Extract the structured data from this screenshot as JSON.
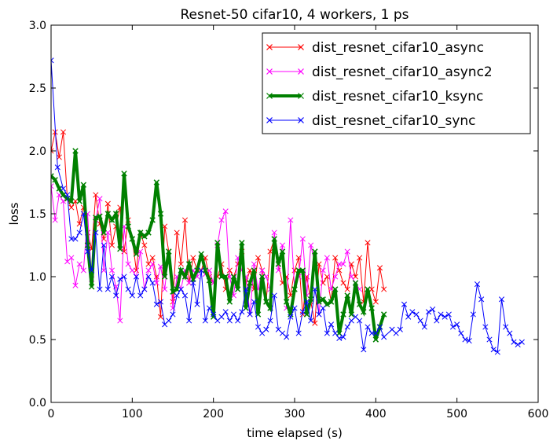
{
  "chart_data": {
    "type": "line",
    "title": "Resnet-50 cifar10, 4 workers, 1 ps",
    "xlabel": "time elapsed (s)",
    "ylabel": "loss",
    "xlim": [
      0,
      600
    ],
    "ylim": [
      0.0,
      3.0
    ],
    "xticks": [
      0,
      100,
      200,
      300,
      400,
      500,
      600
    ],
    "yticks": [
      0.0,
      0.5,
      1.0,
      1.5,
      2.0,
      2.5,
      3.0
    ],
    "xtick_labels": [
      "0",
      "100",
      "200",
      "300",
      "400",
      "500",
      "600"
    ],
    "ytick_labels": [
      "0.0",
      "0.5",
      "1.0",
      "1.5",
      "2.0",
      "2.5",
      "3.0"
    ],
    "grid": false,
    "legend_position": "top-right",
    "series": [
      {
        "name": "dist_resnet_cifar10_async",
        "color": "#ff0000",
        "marker": "x",
        "linewidth": 1,
        "x": [
          0,
          5,
          10,
          15,
          20,
          25,
          30,
          35,
          40,
          45,
          50,
          55,
          60,
          65,
          70,
          75,
          80,
          85,
          90,
          95,
          100,
          105,
          110,
          115,
          120,
          125,
          130,
          135,
          140,
          145,
          150,
          155,
          160,
          165,
          170,
          175,
          180,
          185,
          190,
          195,
          200,
          205,
          210,
          215,
          220,
          225,
          230,
          235,
          240,
          245,
          250,
          255,
          260,
          265,
          270,
          275,
          280,
          285,
          290,
          295,
          300,
          305,
          310,
          315,
          320,
          325,
          330,
          335,
          340,
          345,
          350,
          355,
          360,
          365,
          370,
          375,
          380,
          385,
          390,
          395,
          400,
          405,
          410
        ],
        "y": [
          2.0,
          2.15,
          1.95,
          2.15,
          1.62,
          1.55,
          1.6,
          1.42,
          1.55,
          1.35,
          1.22,
          1.65,
          1.42,
          1.3,
          1.58,
          1.25,
          1.4,
          1.55,
          1.2,
          1.45,
          1.3,
          1.05,
          1.35,
          1.25,
          1.1,
          1.15,
          1.0,
          0.68,
          1.4,
          1.2,
          0.8,
          1.35,
          1.1,
          1.45,
          0.95,
          1.15,
          1.05,
          1.05,
          1.15,
          1.0,
          0.95,
          1.0,
          1.1,
          0.9,
          1.05,
          1.0,
          1.1,
          1.2,
          0.95,
          1.05,
          0.9,
          1.15,
          1.05,
          0.8,
          1.2,
          1.3,
          1.1,
          0.95,
          1.0,
          0.85,
          1.05,
          1.15,
          0.7,
          1.0,
          0.8,
          0.63,
          1.1,
          0.95,
          1.0,
          0.8,
          1.15,
          1.05,
          0.95,
          0.9,
          1.1,
          1.0,
          1.15,
          0.8,
          1.27,
          0.9,
          0.8,
          1.07,
          0.9
        ]
      },
      {
        "name": "dist_resnet_cifar10_async2",
        "color": "#ff00ff",
        "marker": "x",
        "linewidth": 1,
        "x": [
          0,
          5,
          10,
          15,
          20,
          25,
          30,
          35,
          40,
          45,
          50,
          55,
          60,
          65,
          70,
          75,
          80,
          85,
          90,
          95,
          100,
          105,
          110,
          115,
          120,
          125,
          130,
          135,
          140,
          145,
          150,
          155,
          160,
          165,
          170,
          175,
          180,
          185,
          190,
          195,
          200,
          205,
          210,
          215,
          220,
          225,
          230,
          235,
          240,
          245,
          250,
          255,
          260,
          265,
          270,
          275,
          280,
          285,
          290,
          295,
          300,
          305,
          310,
          315,
          320,
          325,
          330,
          335,
          340,
          345,
          350,
          355,
          360,
          365,
          370,
          375,
          380
        ],
        "y": [
          1.72,
          1.45,
          1.65,
          1.6,
          1.12,
          1.15,
          0.93,
          1.1,
          1.05,
          1.5,
          0.98,
          1.45,
          1.62,
          1.05,
          1.35,
          1.05,
          0.92,
          0.65,
          1.4,
          1.1,
          1.05,
          1.0,
          1.2,
          0.9,
          1.05,
          1.1,
          0.95,
          1.08,
          0.9,
          1.2,
          0.75,
          1.0,
          0.9,
          1.05,
          0.95,
          1.05,
          1.0,
          1.18,
          1.02,
          1.05,
          0.95,
          1.25,
          1.45,
          1.52,
          1.0,
          0.85,
          1.15,
          1.05,
          1.0,
          0.7,
          1.1,
          0.9,
          1.05,
          1.0,
          0.9,
          1.35,
          1.05,
          1.25,
          0.75,
          1.45,
          0.9,
          1.0,
          1.3,
          0.85,
          1.25,
          1.1,
          0.7,
          1.05,
          1.15,
          0.9,
          1.0,
          1.1,
          1.1,
          1.2,
          1.0,
          0.95,
          0.9
        ]
      },
      {
        "name": "dist_resnet_cifar10_ksync",
        "color": "#008000",
        "marker": "x",
        "linewidth": 4,
        "x": [
          0,
          5,
          10,
          15,
          20,
          25,
          30,
          35,
          40,
          45,
          50,
          55,
          60,
          65,
          70,
          75,
          80,
          85,
          90,
          95,
          100,
          105,
          110,
          115,
          120,
          125,
          130,
          135,
          140,
          145,
          150,
          155,
          160,
          165,
          170,
          175,
          180,
          185,
          190,
          195,
          200,
          205,
          210,
          215,
          220,
          225,
          230,
          235,
          240,
          245,
          250,
          255,
          260,
          265,
          270,
          275,
          280,
          285,
          290,
          295,
          300,
          305,
          310,
          315,
          320,
          325,
          330,
          335,
          340,
          345,
          350,
          355,
          360,
          365,
          370,
          375,
          380,
          385,
          390,
          395,
          400,
          405,
          410
        ],
        "y": [
          1.8,
          1.77,
          1.7,
          1.65,
          1.62,
          1.6,
          2.0,
          1.6,
          1.73,
          1.25,
          0.92,
          1.47,
          1.48,
          1.35,
          1.5,
          1.45,
          1.5,
          1.22,
          1.82,
          1.4,
          1.3,
          1.18,
          1.35,
          1.32,
          1.35,
          1.45,
          1.75,
          1.5,
          1.0,
          1.2,
          0.88,
          0.9,
          1.05,
          1.0,
          1.1,
          0.98,
          1.05,
          1.18,
          1.05,
          0.97,
          0.68,
          1.27,
          1.0,
          1.0,
          0.8,
          1.0,
          0.9,
          1.27,
          0.75,
          0.95,
          1.05,
          0.7,
          1.0,
          0.8,
          0.75,
          1.3,
          1.1,
          1.2,
          0.8,
          0.7,
          0.9,
          1.05,
          1.05,
          0.7,
          0.82,
          1.2,
          0.8,
          0.82,
          0.78,
          0.8,
          0.9,
          0.55,
          0.7,
          0.85,
          0.7,
          0.95,
          0.78,
          0.72,
          0.9,
          0.75,
          0.5,
          0.6,
          0.7
        ]
      },
      {
        "name": "dist_resnet_cifar10_sync",
        "color": "#0000ff",
        "marker": "x",
        "linewidth": 1,
        "x": [
          0,
          8,
          15,
          20,
          25,
          30,
          35,
          40,
          45,
          50,
          55,
          60,
          65,
          70,
          75,
          80,
          85,
          90,
          95,
          100,
          105,
          110,
          115,
          120,
          125,
          130,
          135,
          140,
          145,
          150,
          155,
          160,
          165,
          170,
          175,
          180,
          185,
          190,
          195,
          200,
          205,
          210,
          215,
          220,
          225,
          230,
          235,
          240,
          245,
          250,
          255,
          260,
          265,
          270,
          275,
          280,
          285,
          290,
          295,
          300,
          305,
          310,
          315,
          320,
          325,
          330,
          335,
          340,
          345,
          350,
          355,
          360,
          365,
          370,
          375,
          380,
          385,
          390,
          395,
          400,
          405,
          410,
          420,
          425,
          430,
          435,
          440,
          445,
          450,
          455,
          460,
          465,
          470,
          475,
          480,
          485,
          490,
          495,
          500,
          505,
          510,
          515,
          520,
          525,
          530,
          535,
          540,
          545,
          550,
          555,
          560,
          565,
          570,
          575,
          580
        ],
        "y": [
          2.72,
          1.87,
          1.7,
          1.65,
          1.3,
          1.3,
          1.35,
          1.5,
          1.2,
          1.05,
          1.35,
          0.9,
          1.25,
          0.9,
          1.0,
          0.85,
          0.98,
          1.0,
          0.9,
          0.85,
          1.0,
          0.85,
          0.9,
          1.0,
          0.95,
          0.78,
          0.8,
          0.62,
          0.65,
          0.7,
          0.85,
          0.9,
          0.85,
          0.65,
          0.95,
          0.78,
          1.05,
          0.65,
          0.75,
          0.7,
          0.65,
          0.68,
          0.72,
          0.65,
          0.7,
          0.65,
          0.72,
          0.9,
          0.7,
          0.8,
          0.6,
          0.55,
          0.58,
          0.65,
          0.85,
          0.58,
          0.55,
          0.52,
          0.68,
          0.75,
          0.55,
          0.72,
          0.8,
          0.65,
          0.9,
          0.7,
          0.75,
          0.55,
          0.62,
          0.55,
          0.51,
          0.52,
          0.6,
          0.65,
          0.68,
          0.65,
          0.42,
          0.6,
          0.55,
          0.55,
          0.6,
          0.52,
          0.58,
          0.55,
          0.58,
          0.78,
          0.68,
          0.72,
          0.7,
          0.65,
          0.6,
          0.72,
          0.74,
          0.65,
          0.7,
          0.68,
          0.7,
          0.6,
          0.62,
          0.55,
          0.5,
          0.49,
          0.7,
          0.94,
          0.82,
          0.6,
          0.5,
          0.42,
          0.4,
          0.82,
          0.6,
          0.55,
          0.48,
          0.46,
          0.48
        ]
      }
    ]
  }
}
